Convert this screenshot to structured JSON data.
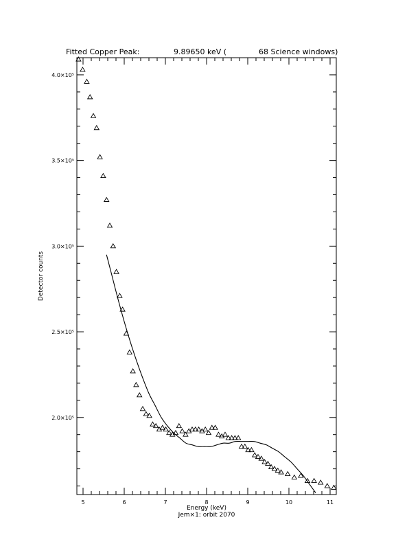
{
  "chart_data": {
    "type": "scatter",
    "title_parts": {
      "label": "Fitted Copper Peak:",
      "value": "9.89650 keV (",
      "windows": "68 Science windows)"
    },
    "xlabel": "Energy (keV)",
    "ylabel": "Detector counts",
    "footer": "Jem×1: orbit 2070",
    "xlim": [
      4.85,
      11.15
    ],
    "ylim": [
      155000,
      410000
    ],
    "x_ticks": [
      {
        "value": 5,
        "label": "5"
      },
      {
        "value": 6,
        "label": "6"
      },
      {
        "value": 7,
        "label": "7"
      },
      {
        "value": 8,
        "label": "8"
      },
      {
        "value": 9,
        "label": "9"
      },
      {
        "value": 10,
        "label": "10"
      },
      {
        "value": 11,
        "label": "11"
      }
    ],
    "y_ticks": [
      {
        "value": 200000,
        "label": "2.0×10⁵"
      },
      {
        "value": 250000,
        "label": "2.5×10⁵"
      },
      {
        "value": 300000,
        "label": "3.0×10⁵"
      },
      {
        "value": 350000,
        "label": "3.5×10⁵"
      },
      {
        "value": 400000,
        "label": "4.0×10⁵"
      }
    ],
    "series": [
      {
        "marker": "triangle",
        "x": [
          4.89,
          4.99,
          5.09,
          5.17,
          5.25,
          5.33,
          5.41,
          5.49,
          5.57,
          5.65,
          5.73,
          5.81,
          5.89,
          5.96,
          6.05,
          6.13,
          6.21,
          6.29,
          6.37,
          6.45,
          6.53,
          6.61,
          6.69,
          6.77,
          6.85,
          6.93,
          7.01,
          7.09,
          7.17,
          7.25,
          7.33,
          7.41,
          7.49,
          7.57,
          7.65,
          7.73,
          7.81,
          7.89,
          7.97,
          8.05,
          8.13,
          8.21,
          8.29,
          8.37,
          8.45,
          8.53,
          8.61,
          8.69,
          8.77,
          8.85,
          8.93,
          9.01,
          9.09,
          9.17,
          9.25,
          9.33,
          9.41,
          9.49,
          9.57,
          9.65,
          9.73,
          9.81,
          9.97,
          10.13,
          10.29,
          10.45,
          10.61,
          10.77,
          10.93,
          11.09
        ],
        "y": [
          409000,
          403000,
          396000,
          387000,
          376000,
          369000,
          352000,
          341000,
          327000,
          312000,
          300000,
          285000,
          271000,
          263000,
          249000,
          238000,
          227000,
          219000,
          213000,
          205000,
          202000,
          201000,
          196000,
          195000,
          193000,
          194000,
          193000,
          191000,
          190000,
          191000,
          195000,
          192000,
          190000,
          192000,
          193000,
          193000,
          193000,
          192000,
          193000,
          191000,
          194000,
          194000,
          190000,
          189000,
          190000,
          188000,
          188000,
          188000,
          188000,
          183000,
          183000,
          181000,
          181000,
          178000,
          177000,
          176000,
          174000,
          173000,
          171000,
          170000,
          169000,
          168000,
          167000,
          165000,
          166000,
          163000,
          163000,
          162000,
          160000,
          159000
        ]
      },
      {
        "marker": "line",
        "x": [
          5.57,
          5.7,
          5.85,
          6.0,
          6.15,
          6.3,
          6.45,
          6.6,
          6.75,
          6.9,
          7.05,
          7.2,
          7.35,
          7.5,
          7.65,
          7.8,
          7.95,
          8.1,
          8.25,
          8.4,
          8.55,
          8.7,
          8.85,
          9.0,
          9.15,
          9.3,
          9.45,
          9.6,
          9.75,
          9.9,
          10.05,
          10.2,
          10.35,
          10.5,
          10.65
        ],
        "y": [
          295000,
          283000,
          269000,
          256000,
          244000,
          233000,
          223000,
          214000,
          207000,
          200000,
          195000,
          191000,
          188000,
          185000,
          184000,
          183000,
          183000,
          183000,
          184000,
          185000,
          185000,
          186000,
          186000,
          186000,
          186000,
          185000,
          184000,
          182000,
          180000,
          177000,
          174000,
          170000,
          166000,
          161000,
          156000
        ]
      }
    ]
  }
}
